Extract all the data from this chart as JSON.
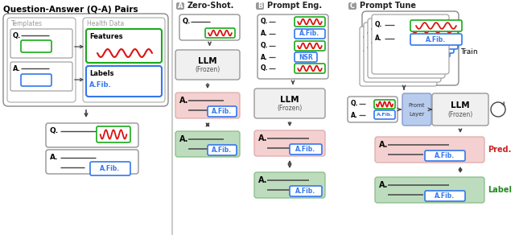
{
  "title": "Question-Answer (Q-A) Pairs",
  "section_A": "Zero-Shot.",
  "section_B": "Prompt Eng.",
  "section_C": "Prompt Tune",
  "colors": {
    "white": "#ffffff",
    "light_gray": "#f0f0f0",
    "med_gray": "#e8e8e8",
    "dark_gray": "#555555",
    "border_gray": "#999999",
    "green_border": "#1aaa1a",
    "blue_border": "#3377ee",
    "blue_text": "#3377ee",
    "red_wave": "#dd1111",
    "pink_bg": "#f5d0d0",
    "pink_border": "#ddaaaa",
    "green_fill": "#bddcbd",
    "green_fill_border": "#88bb88",
    "badge_gray": "#999999",
    "prompt_layer_bg": "#b8ccee",
    "prompt_layer_border": "#8899cc",
    "black": "#111111",
    "arrow": "#444444",
    "pred_red": "#cc2222",
    "label_green": "#228822",
    "sep_line": "#cccccc"
  },
  "figsize": [
    6.4,
    2.92
  ],
  "dpi": 100
}
